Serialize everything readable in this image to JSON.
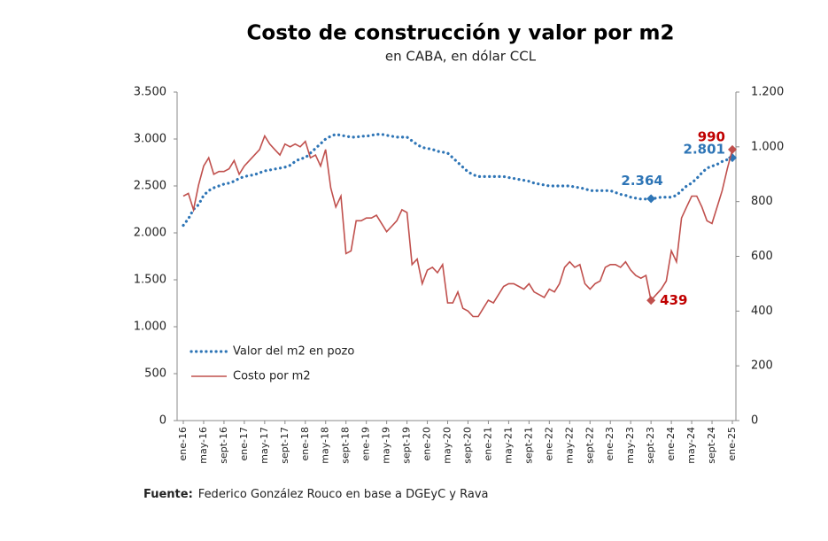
{
  "chart_data": {
    "type": "line",
    "title": "Costo de construcción y valor por m2",
    "subtitle": "en CABA, en dólar CCL",
    "source_label": "Fuente:",
    "source": "Federico González Rouco en base a DGEyC y Rava",
    "categories": [
      "ene-16",
      null,
      null,
      null,
      "may-16",
      null,
      null,
      null,
      "sept-16",
      null,
      null,
      null,
      "ene-17",
      null,
      null,
      null,
      "may-17",
      null,
      null,
      null,
      "sept-17",
      null,
      null,
      null,
      "ene-18",
      null,
      null,
      null,
      "may-18",
      null,
      null,
      null,
      "sept-18",
      null,
      null,
      null,
      "ene-19",
      null,
      null,
      null,
      "may-19",
      null,
      null,
      null,
      "sept-19",
      null,
      null,
      null,
      "ene-20",
      null,
      null,
      null,
      "may-20",
      null,
      null,
      null,
      "sept-20",
      null,
      null,
      null,
      "ene-21",
      null,
      null,
      null,
      "may-21",
      null,
      null,
      null,
      "sept-21",
      null,
      null,
      null,
      "ene-22",
      null,
      null,
      null,
      "may-22",
      null,
      null,
      null,
      "sept-22",
      null,
      null,
      null,
      "ene-23",
      null,
      null,
      null,
      "may-23",
      null,
      null,
      null,
      "sept-23",
      null,
      null,
      null,
      "ene-24",
      null,
      null,
      null,
      "may-24",
      null,
      null,
      null,
      "sept-24",
      null,
      null,
      null,
      "ene-25"
    ],
    "series": [
      {
        "name": "Valor del m2 en pozo",
        "color": "#2e75b6",
        "style": "dotted",
        "axis": "y",
        "values": [
          2080,
          2150,
          2250,
          2300,
          2400,
          2450,
          2480,
          2500,
          2520,
          2530,
          2550,
          2580,
          2600,
          2610,
          2620,
          2640,
          2660,
          2670,
          2680,
          2690,
          2700,
          2720,
          2760,
          2790,
          2800,
          2850,
          2900,
          2950,
          3000,
          3030,
          3050,
          3040,
          3030,
          3020,
          3020,
          3030,
          3030,
          3040,
          3050,
          3050,
          3040,
          3030,
          3020,
          3020,
          3020,
          2980,
          2940,
          2910,
          2900,
          2890,
          2870,
          2860,
          2850,
          2800,
          2750,
          2700,
          2650,
          2620,
          2600,
          2600,
          2600,
          2600,
          2600,
          2600,
          2590,
          2580,
          2570,
          2560,
          2550,
          2530,
          2520,
          2510,
          2500,
          2500,
          2500,
          2500,
          2500,
          2490,
          2480,
          2470,
          2450,
          2450,
          2450,
          2450,
          2450,
          2430,
          2410,
          2400,
          2380,
          2370,
          2360,
          2360,
          2364,
          2370,
          2380,
          2380,
          2380,
          2400,
          2450,
          2500,
          2530,
          2580,
          2640,
          2690,
          2710,
          2730,
          2760,
          2780,
          2801
        ],
        "value_labels": [
          null,
          null,
          null,
          null,
          null,
          null,
          null,
          null,
          null,
          null,
          null,
          null,
          null,
          null,
          null,
          null,
          null,
          null,
          null,
          null,
          null,
          null,
          null,
          null,
          null,
          null,
          null,
          null,
          null,
          null,
          null,
          null,
          null,
          null,
          null,
          null,
          null,
          null,
          null,
          null,
          null,
          null,
          null,
          null,
          null,
          null,
          null,
          null,
          null,
          null,
          null,
          null,
          null,
          null,
          null,
          null,
          null,
          null,
          null,
          null,
          null,
          null,
          null,
          null,
          null,
          null,
          null,
          null,
          null,
          null,
          null,
          null,
          null,
          null,
          null,
          null,
          null,
          null,
          null,
          null,
          null,
          null,
          null,
          null,
          null,
          null,
          null,
          null,
          null,
          null,
          null,
          null,
          "2.364",
          null,
          null,
          null,
          null,
          null,
          null,
          null,
          null,
          null,
          null,
          null,
          null,
          null,
          null,
          null,
          "2.801"
        ]
      },
      {
        "name": "Costo por m2",
        "color": "#c0504d",
        "style": "solid",
        "axis": "y2",
        "label_color": "#c00000",
        "values": [
          820,
          830,
          770,
          860,
          930,
          960,
          900,
          910,
          910,
          920,
          950,
          900,
          930,
          950,
          970,
          990,
          1040,
          1010,
          990,
          970,
          1010,
          1000,
          1010,
          1000,
          1020,
          960,
          970,
          930,
          990,
          850,
          780,
          820,
          610,
          620,
          730,
          730,
          740,
          740,
          750,
          720,
          690,
          710,
          730,
          770,
          760,
          570,
          590,
          500,
          550,
          560,
          540,
          570,
          430,
          430,
          470,
          410,
          400,
          380,
          380,
          410,
          440,
          430,
          460,
          490,
          500,
          500,
          490,
          480,
          500,
          470,
          460,
          450,
          480,
          470,
          500,
          560,
          580,
          560,
          570,
          500,
          480,
          500,
          510,
          560,
          570,
          570,
          560,
          580,
          550,
          530,
          520,
          530,
          439,
          460,
          480,
          510,
          620,
          580,
          740,
          780,
          820,
          820,
          780,
          730,
          720,
          780,
          840,
          920,
          990
        ],
        "value_labels": [
          null,
          null,
          null,
          null,
          null,
          null,
          null,
          null,
          null,
          null,
          null,
          null,
          null,
          null,
          null,
          null,
          null,
          null,
          null,
          null,
          null,
          null,
          null,
          null,
          null,
          null,
          null,
          null,
          null,
          null,
          null,
          null,
          null,
          null,
          null,
          null,
          null,
          null,
          null,
          null,
          null,
          null,
          null,
          null,
          null,
          null,
          null,
          null,
          null,
          null,
          null,
          null,
          null,
          null,
          null,
          null,
          null,
          null,
          null,
          null,
          null,
          null,
          null,
          null,
          null,
          null,
          null,
          null,
          null,
          null,
          null,
          null,
          null,
          null,
          null,
          null,
          null,
          null,
          null,
          null,
          null,
          null,
          null,
          null,
          null,
          null,
          null,
          null,
          null,
          null,
          null,
          null,
          "439",
          null,
          null,
          null,
          null,
          null,
          null,
          null,
          null,
          null,
          null,
          null,
          null,
          null,
          null,
          null,
          "990"
        ]
      }
    ],
    "ylim": [
      0,
      3500
    ],
    "yticks": [
      0,
      500,
      {
        "value": 1000,
        "label": "1.000"
      },
      {
        "value": 1500,
        "label": "1.500"
      },
      {
        "value": 2000,
        "label": "2.000"
      },
      {
        "value": 2500,
        "label": "2.500"
      },
      {
        "value": 3000,
        "label": "3.000"
      },
      {
        "value": 3500,
        "label": "3.500"
      }
    ],
    "y2lim": [
      0,
      1200
    ],
    "y2ticks": [
      0,
      200,
      400,
      600,
      800,
      {
        "value": 1000,
        "label": "1.000"
      },
      {
        "value": 1200,
        "label": "1.200"
      }
    ],
    "legend": "left",
    "grid": false
  }
}
